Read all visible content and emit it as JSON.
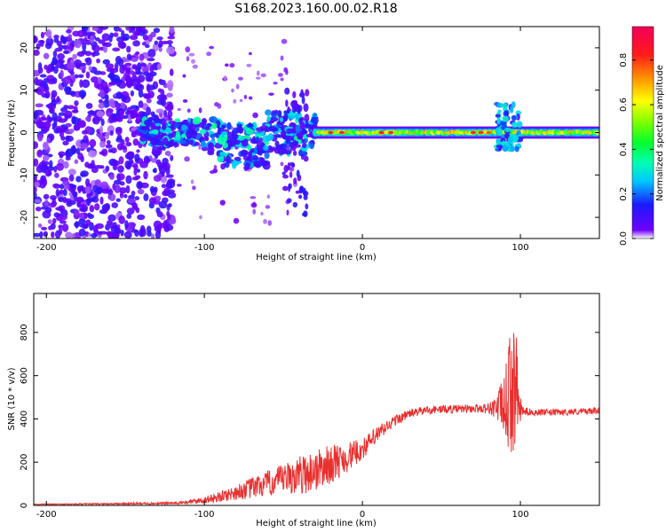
{
  "title": "S168.2023.160.00.02.R18",
  "chart_data": [
    {
      "type": "heatmap",
      "name": "spectrogram",
      "xlabel": "Height of straight line (km)",
      "ylabel": "Frequency (Hz)",
      "xlim": [
        -208,
        150
      ],
      "ylim": [
        -25,
        25
      ],
      "x_ticks": [
        "-200",
        "-100",
        "0",
        "100"
      ],
      "x_tick_values": [
        -200,
        -100,
        0,
        100
      ],
      "y_ticks": [
        "-20",
        "-10",
        "0",
        "10",
        "20"
      ],
      "y_tick_values": [
        -20,
        -10,
        0,
        10,
        20
      ],
      "colorbar": {
        "label": "Normalized spectral amplitude",
        "range": [
          0,
          0.95
        ],
        "ticks": [
          "0.0",
          "0.2",
          "0.4",
          "0.6",
          "0.8"
        ],
        "tick_values": [
          0.0,
          0.2,
          0.4,
          0.6,
          0.8
        ]
      },
      "regions": [
        {
          "x_range": [
            -208,
            -120
          ],
          "freq_range": [
            -25,
            25
          ],
          "amplitude": 0.1,
          "description_kind": "scattered noise"
        },
        {
          "x_range": [
            -140,
            -30
          ],
          "freq_range": [
            -8,
            6
          ],
          "amplitude": 0.25,
          "description_kind": "broad band"
        },
        {
          "x_range": [
            -50,
            -35
          ],
          "freq_range": [
            -20,
            10
          ],
          "amplitude": 0.15,
          "description_kind": "spread"
        },
        {
          "x_range": [
            -30,
            150
          ],
          "freq_range": [
            -1.5,
            1.5
          ],
          "amplitude": 0.7,
          "description_kind": "narrow band at 0 Hz"
        },
        {
          "x_range": [
            85,
            100
          ],
          "freq_range": [
            -4,
            7
          ],
          "amplitude": 0.3,
          "description_kind": "disturbance"
        }
      ]
    },
    {
      "type": "line",
      "name": "snr",
      "xlabel": "Height of straight line (km)",
      "ylabel": "SNR (10 * v/v)",
      "xlim": [
        -208,
        150
      ],
      "ylim": [
        0,
        980
      ],
      "x_ticks": [
        "-200",
        "-100",
        "0",
        "100"
      ],
      "x_tick_values": [
        -200,
        -100,
        0,
        100
      ],
      "y_ticks": [
        "0",
        "200",
        "400",
        "600",
        "800"
      ],
      "y_tick_values": [
        0,
        200,
        400,
        600,
        800
      ],
      "color": "#e8302f",
      "series": [
        {
          "name": "SNR",
          "x": [
            -208,
            -180,
            -150,
            -120,
            -110,
            -100,
            -90,
            -80,
            -70,
            -60,
            -50,
            -40,
            -30,
            -20,
            -10,
            0,
            10,
            20,
            30,
            40,
            50,
            60,
            70,
            80,
            85,
            90,
            94,
            96,
            98,
            100,
            102,
            110,
            120,
            130,
            140,
            150
          ],
          "y": [
            5,
            6,
            8,
            10,
            15,
            25,
            40,
            60,
            80,
            100,
            120,
            140,
            160,
            190,
            220,
            260,
            330,
            390,
            425,
            440,
            445,
            445,
            448,
            450,
            455,
            460,
            520,
            600,
            480,
            440,
            435,
            430,
            430,
            432,
            435,
            438
          ],
          "noise_amplitude": [
            2,
            3,
            4,
            6,
            10,
            15,
            25,
            35,
            50,
            60,
            70,
            90,
            100,
            90,
            70,
            50,
            40,
            25,
            20,
            20,
            20,
            20,
            20,
            25,
            60,
            150,
            300,
            350,
            250,
            60,
            20,
            15,
            15,
            15,
            15,
            15
          ]
        }
      ]
    }
  ]
}
